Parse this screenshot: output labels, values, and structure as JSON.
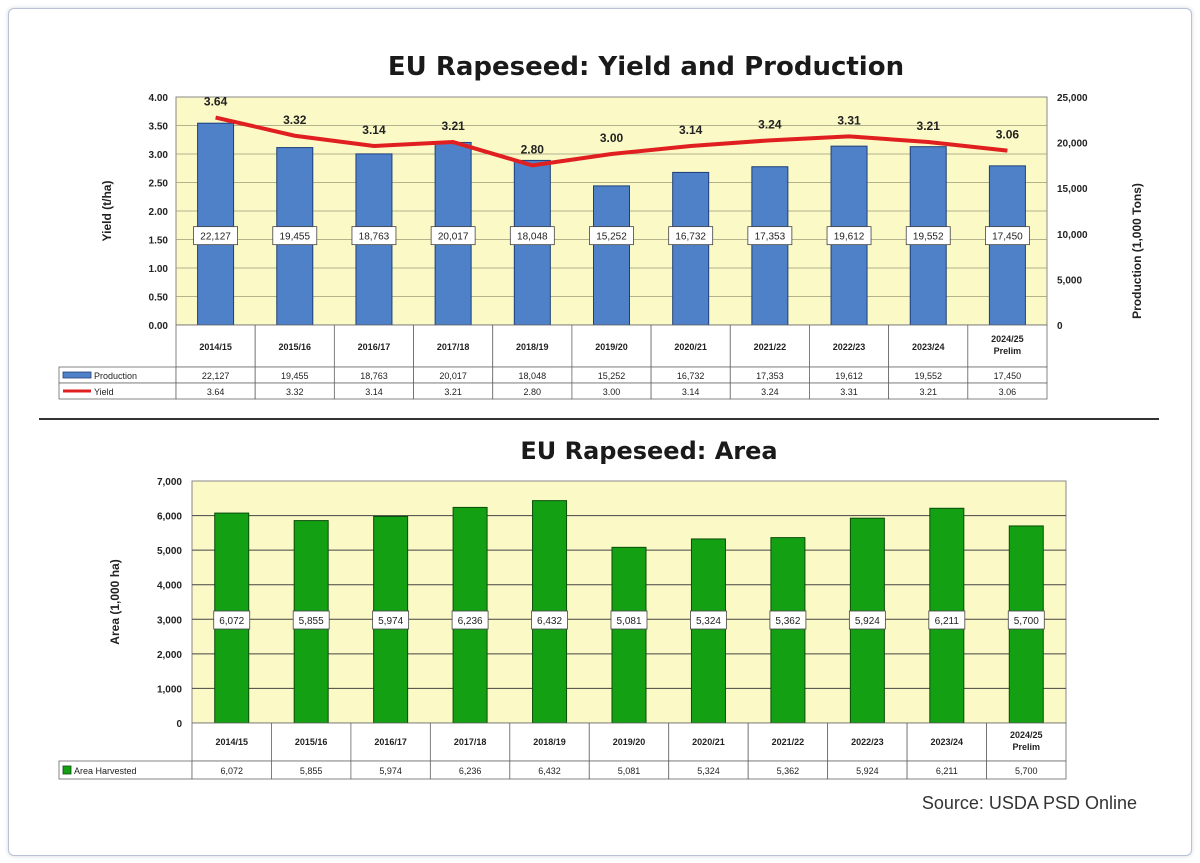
{
  "source": "Source: USDA PSD Online",
  "chart_data": [
    {
      "type": "bar+line",
      "title": "EU Rapeseed: Yield and Production",
      "categories": [
        "2014/15",
        "2015/16",
        "2016/17",
        "2017/18",
        "2018/19",
        "2019/20",
        "2020/21",
        "2021/22",
        "2022/23",
        "2023/24",
        "2024/25 Prelim"
      ],
      "y_left_label": "Yield (t/ha)",
      "y_right_label": "Production (1,000 Tons)",
      "y_left_range": [
        0,
        4.0
      ],
      "y_left_ticks": [
        "0.00",
        "0.50",
        "1.00",
        "1.50",
        "2.00",
        "2.50",
        "3.00",
        "3.50",
        "4.00"
      ],
      "y_right_range": [
        0,
        25000
      ],
      "y_right_ticks": [
        "0",
        "5,000",
        "10,000",
        "15,000",
        "20,000",
        "25,000"
      ],
      "grid": true,
      "legend": "data-table-below",
      "series": [
        {
          "name": "Production",
          "type": "bar",
          "axis": "right",
          "color": "#4f81c8",
          "values": [
            22127,
            19455,
            18763,
            20017,
            18048,
            15252,
            16732,
            17353,
            19612,
            19552,
            17450
          ],
          "labels": [
            "22,127",
            "19,455",
            "18,763",
            "20,017",
            "18,048",
            "15,252",
            "16,732",
            "17,353",
            "19,612",
            "19,552",
            "17,450"
          ]
        },
        {
          "name": "Yield",
          "type": "line",
          "axis": "left",
          "color": "#e02020",
          "values": [
            3.64,
            3.32,
            3.14,
            3.21,
            2.8,
            3.0,
            3.14,
            3.24,
            3.31,
            3.21,
            3.06
          ],
          "labels": [
            "3.64",
            "3.32",
            "3.14",
            "3.21",
            "2.80",
            "3.00",
            "3.14",
            "3.24",
            "3.31",
            "3.21",
            "3.06"
          ]
        }
      ]
    },
    {
      "type": "bar",
      "title": "EU Rapeseed:  Area",
      "categories": [
        "2014/15",
        "2015/16",
        "2016/17",
        "2017/18",
        "2018/19",
        "2019/20",
        "2020/21",
        "2021/22",
        "2022/23",
        "2023/24",
        "2024/25 Prelim"
      ],
      "ylabel": "Area  (1,000  ha)",
      "ylim": [
        0,
        7000
      ],
      "y_ticks": [
        "0",
        "1,000",
        "2,000",
        "3,000",
        "4,000",
        "5,000",
        "6,000",
        "7,000"
      ],
      "grid": true,
      "legend": "data-table-below",
      "series": [
        {
          "name": "Area Harvested",
          "color": "#13a013",
          "values": [
            6072,
            5855,
            5974,
            6236,
            6432,
            5081,
            5324,
            5362,
            5924,
            6211,
            5700
          ],
          "labels": [
            "6,072",
            "5,855",
            "5,974",
            "6,236",
            "6,432",
            "5,081",
            "5,324",
            "5,362",
            "5,924",
            "6,211",
            "5,700"
          ]
        }
      ]
    }
  ]
}
